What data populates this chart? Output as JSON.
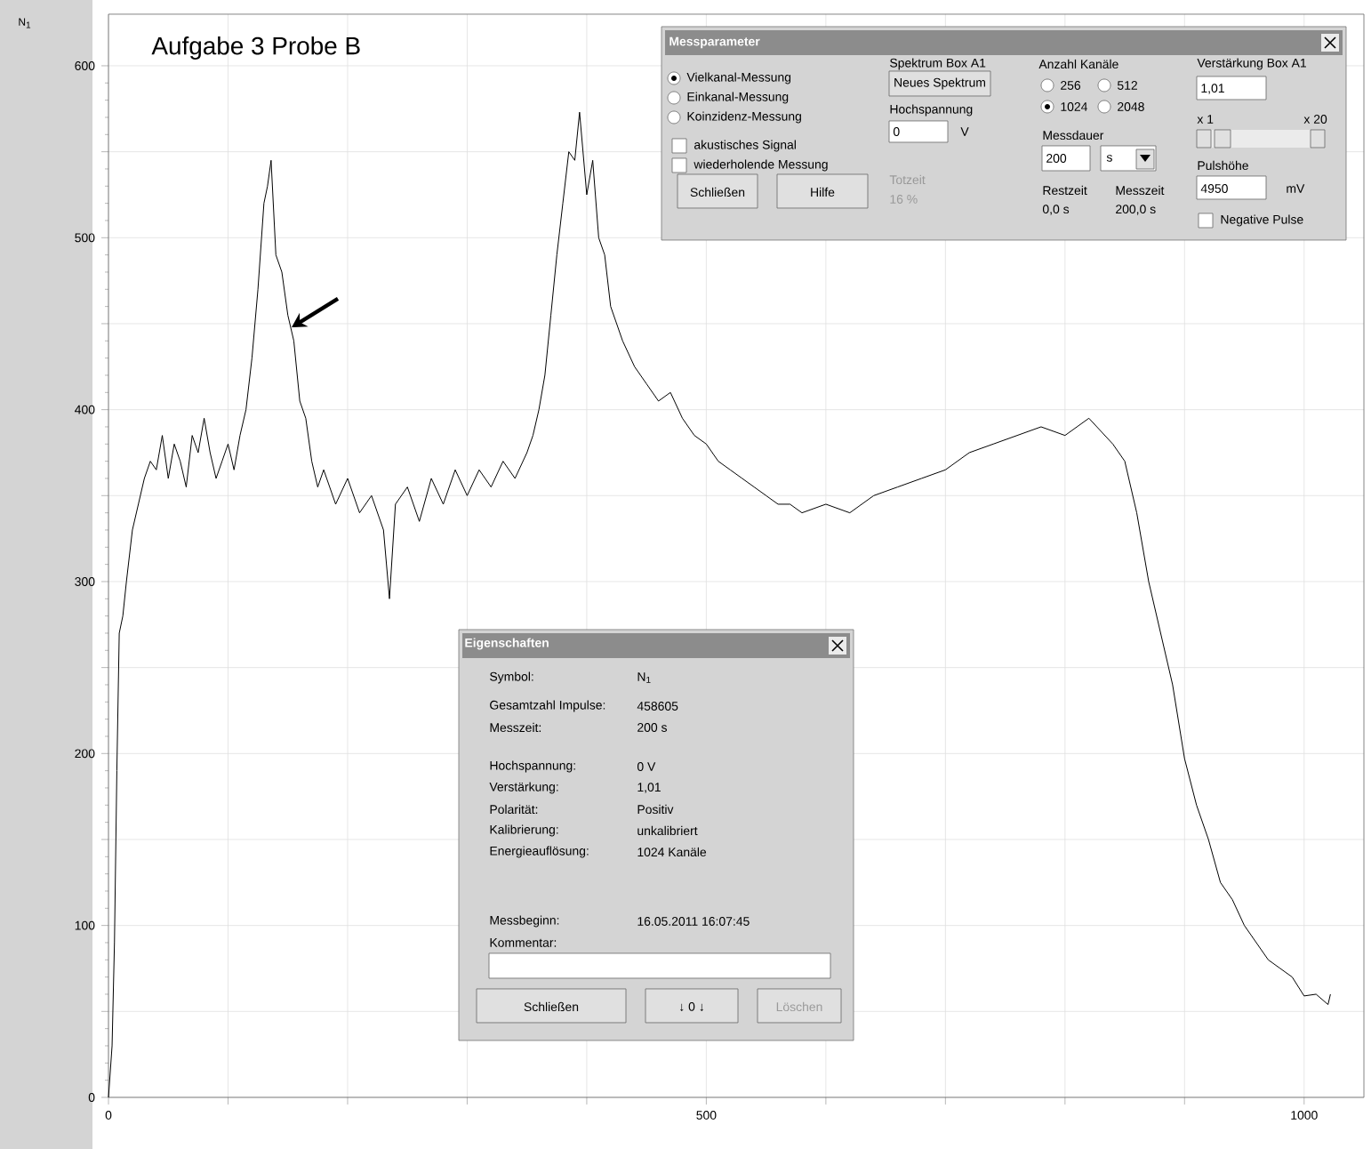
{
  "chart_data": {
    "type": "line",
    "title": "Aufgabe 3 Probe B",
    "xlim": [
      0,
      1050
    ],
    "ylim": [
      0,
      630
    ],
    "xticks": [
      0,
      {
        "value": 100,
        "label": null
      },
      {
        "value": 200,
        "label": null
      },
      {
        "value": 300,
        "label": null
      },
      {
        "value": 400,
        "label": null
      },
      500,
      {
        "value": 600,
        "label": null
      },
      {
        "value": 700,
        "label": null
      },
      {
        "value": 800,
        "label": null
      },
      {
        "value": 900,
        "label": null
      },
      1000
    ],
    "yticks": [
      0,
      {
        "value": 50,
        "label": null
      },
      100,
      {
        "value": 150,
        "label": null
      },
      200,
      {
        "value": 250,
        "label": null
      },
      300,
      {
        "value": 350,
        "label": null
      },
      400,
      {
        "value": 450,
        "label": null
      },
      500,
      {
        "value": 550,
        "label": null
      },
      600
    ],
    "grid": true,
    "series": [
      {
        "color": "#000000",
        "x": [
          0,
          3,
          5,
          7,
          9,
          12,
          15,
          20,
          25,
          30,
          35,
          40,
          45,
          50,
          55,
          60,
          65,
          70,
          75,
          80,
          85,
          90,
          95,
          100,
          105,
          110,
          115,
          120,
          125,
          130,
          133,
          136,
          140,
          145,
          150,
          155,
          160,
          165,
          170,
          175,
          180,
          190,
          200,
          210,
          220,
          230,
          235,
          240,
          250,
          260,
          270,
          280,
          290,
          300,
          310,
          320,
          330,
          340,
          350,
          355,
          360,
          365,
          370,
          375,
          380,
          385,
          390,
          394,
          400,
          405,
          410,
          415,
          420,
          430,
          440,
          450,
          460,
          470,
          480,
          490,
          500,
          510,
          520,
          530,
          540,
          550,
          560,
          570,
          580,
          600,
          620,
          640,
          660,
          680,
          700,
          720,
          740,
          760,
          780,
          800,
          820,
          840,
          850,
          860,
          870,
          880,
          890,
          900,
          910,
          920,
          930,
          940,
          950,
          960,
          970,
          980,
          990,
          1000,
          1010,
          1020,
          1022
        ],
        "values": [
          0,
          30,
          90,
          190,
          270,
          280,
          300,
          330,
          345,
          360,
          370,
          365,
          385,
          360,
          380,
          370,
          355,
          385,
          375,
          395,
          375,
          360,
          370,
          380,
          365,
          385,
          400,
          430,
          470,
          520,
          530,
          545,
          490,
          480,
          455,
          440,
          405,
          395,
          370,
          355,
          365,
          345,
          360,
          340,
          350,
          330,
          290,
          345,
          355,
          335,
          360,
          345,
          365,
          350,
          365,
          355,
          370,
          360,
          375,
          385,
          400,
          420,
          455,
          490,
          520,
          550,
          545,
          573,
          525,
          545,
          500,
          490,
          460,
          440,
          425,
          415,
          405,
          410,
          395,
          385,
          380,
          370,
          365,
          360,
          355,
          350,
          345,
          345,
          340,
          345,
          340,
          350,
          355,
          360,
          365,
          375,
          380,
          385,
          390,
          385,
          395,
          380,
          370,
          340,
          300,
          270,
          240,
          197,
          170,
          150,
          125,
          115,
          100,
          90,
          80,
          75,
          70,
          59,
          60,
          54,
          60
        ]
      }
    ],
    "annotations": [
      "Messparameter",
      "Vielkanal-Messung",
      "Einkanal-Messung",
      "Koinzidenz-Messung",
      "akustisches Signal",
      "wiederholende Messung",
      "Schließen",
      "Hilfe",
      "Spektrum   Box A1",
      "Neues Spektrum",
      "Hochspannung",
      "0",
      "V",
      "Totzeit",
      "16 %",
      "Anzahl Kanäle",
      "256",
      "512",
      "1024",
      "2048",
      "Messdauer",
      "200",
      "s",
      "Restzeit",
      "Messzeit",
      "0,0 s",
      "200,0 s",
      "Verstärkung Box A1",
      "1,01",
      "x 1",
      "x 20",
      "Pulshöhe",
      "4950",
      "mV",
      "Negative Pulse",
      "Eigenschaften",
      "Symbol:",
      "N$_{1}$",
      "Gesamtzahl Impulse:",
      "458605",
      "Messzeit:",
      "200 s",
      "Hochspannung:",
      "0 V",
      "Verstärkung:",
      "1,01",
      "Polarität:",
      "Positiv",
      "Kalibrierung:",
      "unkalibriert",
      "Energieauflösung:",
      "1024 Kanäle",
      "Messbeginn:",
      "16.05.2011 16:07:45",
      "Kommentar:",
      "Schließen",
      "↓ 0 ↓",
      "Löschen",
      "N$_{1}$"
    ]
  }
}
